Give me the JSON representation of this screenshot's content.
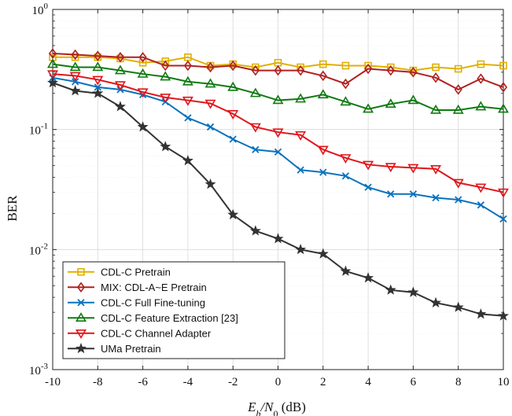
{
  "chart_data": {
    "type": "line",
    "xlabel": "E_b/N_0 (dB)",
    "xlabel_parts": {
      "main": "E",
      "sub": "b",
      "slash": "/N",
      "sub2": "0",
      "unit": " (dB)"
    },
    "ylabel": "BER",
    "xlim": [
      -10,
      10
    ],
    "ylim": [
      0.001,
      1
    ],
    "yscale": "log",
    "grid": true,
    "legend_position": "bottom-left",
    "x": [
      -10,
      -9,
      -8,
      -7,
      -6,
      -5,
      -4,
      -3,
      -2,
      -1,
      0,
      1,
      2,
      3,
      4,
      5,
      6,
      7,
      8,
      9,
      10
    ],
    "x_ticks": [
      "-10",
      "-8",
      "-6",
      "-4",
      "-2",
      "0",
      "2",
      "4",
      "6",
      "8",
      "10"
    ],
    "y_ticks": [
      {
        "base": "10",
        "exp": "0"
      },
      {
        "base": "10",
        "exp": "-1"
      },
      {
        "base": "10",
        "exp": "-2"
      },
      {
        "base": "10",
        "exp": "-3"
      }
    ],
    "series": [
      {
        "name": "CDL-C Pretrain",
        "color": "#e0b000",
        "marker": "square",
        "values": [
          0.4,
          0.4,
          0.4,
          0.39,
          0.36,
          0.37,
          0.4,
          0.34,
          0.35,
          0.33,
          0.36,
          0.33,
          0.35,
          0.34,
          0.34,
          0.33,
          0.31,
          0.33,
          0.32,
          0.35,
          0.34
        ]
      },
      {
        "name": "MIX: CDL-A~E Pretrain",
        "color": "#b02020",
        "marker": "diamond",
        "values": [
          0.43,
          0.42,
          0.41,
          0.4,
          0.4,
          0.34,
          0.34,
          0.33,
          0.34,
          0.31,
          0.31,
          0.31,
          0.28,
          0.24,
          0.32,
          0.31,
          0.3,
          0.27,
          0.215,
          0.265,
          0.225
        ]
      },
      {
        "name": "CDL-C Full Fine-tuning",
        "color": "#0a72bd",
        "marker": "x",
        "values": [
          0.27,
          0.25,
          0.225,
          0.215,
          0.195,
          0.17,
          0.125,
          0.105,
          0.083,
          0.068,
          0.065,
          0.046,
          0.044,
          0.041,
          0.033,
          0.029,
          0.029,
          0.027,
          0.026,
          0.0235,
          0.018
        ]
      },
      {
        "name": "CDL-C Feature Extraction [23]",
        "color": "#0f7a10",
        "marker": "triangle-up",
        "values": [
          0.35,
          0.33,
          0.33,
          0.31,
          0.29,
          0.275,
          0.25,
          0.24,
          0.225,
          0.2,
          0.175,
          0.18,
          0.195,
          0.17,
          0.148,
          0.163,
          0.175,
          0.145,
          0.145,
          0.155,
          0.148
        ]
      },
      {
        "name": "CDL-C Channel Adapter",
        "color": "#e0161a",
        "marker": "triangle-down",
        "values": [
          0.29,
          0.28,
          0.26,
          0.235,
          0.205,
          0.185,
          0.175,
          0.165,
          0.135,
          0.105,
          0.095,
          0.09,
          0.068,
          0.058,
          0.051,
          0.049,
          0.048,
          0.047,
          0.036,
          0.033,
          0.03
        ]
      },
      {
        "name": "UMa Pretrain",
        "color": "#333333",
        "marker": "star",
        "values": [
          0.245,
          0.21,
          0.2,
          0.155,
          0.105,
          0.072,
          0.055,
          0.035,
          0.0195,
          0.0143,
          0.0123,
          0.01,
          0.0092,
          0.0066,
          0.0058,
          0.0046,
          0.0044,
          0.0036,
          0.0033,
          0.0029,
          0.0028
        ]
      }
    ]
  }
}
